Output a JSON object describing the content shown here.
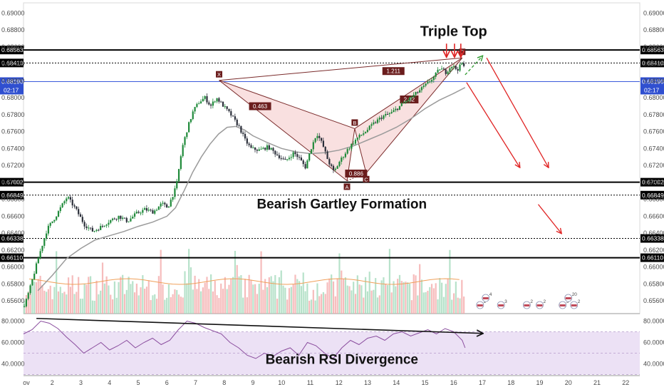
{
  "chart_data": {
    "type": "candlestick",
    "title": "",
    "x_ticks": [
      "ov",
      "2",
      "3",
      "4",
      "5",
      "6",
      "7",
      "8",
      "9",
      "10",
      "11",
      "12",
      "13",
      "14",
      "15",
      "16",
      "17",
      "18",
      "19",
      "20",
      "21",
      "22"
    ],
    "y_ticks": [
      "0.69000",
      "0.68800",
      "0.68600",
      "0.68400",
      "0.68200",
      "0.68000",
      "0.67800",
      "0.67600",
      "0.67400",
      "0.67200",
      "0.67000",
      "0.66800",
      "0.66600",
      "0.66400",
      "0.66200",
      "0.66000",
      "0.65800",
      "0.65600"
    ],
    "ylim": [
      0.6545,
      0.6912
    ],
    "rsi_ticks": [
      "80.0000",
      "60.0000",
      "40.0000"
    ],
    "rsi_ylim": [
      29,
      87
    ],
    "countdown": "02:17",
    "levels": [
      {
        "label": "0.68563",
        "value": 0.68563,
        "style": "solid"
      },
      {
        "label": "0.68410",
        "value": 0.6841,
        "style": "dotted"
      },
      {
        "label": "0.68190",
        "value": 0.6819,
        "style": "current"
      },
      {
        "label": "0.67002",
        "value": 0.67002,
        "style": "solid"
      },
      {
        "label": "0.66849",
        "value": 0.66849,
        "style": "dotted"
      },
      {
        "label": "0.66338",
        "value": 0.66338,
        "style": "dotted"
      },
      {
        "label": "0.66110",
        "value": 0.6611,
        "style": "solid"
      }
    ],
    "price_path": [
      [
        1.0,
        0.6553
      ],
      [
        1.2,
        0.6575
      ],
      [
        1.5,
        0.6612
      ],
      [
        1.8,
        0.6645
      ],
      [
        2.1,
        0.666
      ],
      [
        2.3,
        0.6672
      ],
      [
        2.5,
        0.6683
      ],
      [
        2.8,
        0.6668
      ],
      [
        3.1,
        0.665
      ],
      [
        3.4,
        0.6642
      ],
      [
        3.7,
        0.6648
      ],
      [
        4.0,
        0.6655
      ],
      [
        4.3,
        0.666
      ],
      [
        4.6,
        0.6654
      ],
      [
        4.9,
        0.6663
      ],
      [
        5.2,
        0.6668
      ],
      [
        5.5,
        0.6665
      ],
      [
        5.8,
        0.6675
      ],
      [
        6.0,
        0.667
      ],
      [
        6.3,
        0.6695
      ],
      [
        6.5,
        0.674
      ],
      [
        6.7,
        0.6765
      ],
      [
        6.9,
        0.6785
      ],
      [
        7.1,
        0.6795
      ],
      [
        7.3,
        0.68
      ],
      [
        7.5,
        0.679
      ],
      [
        7.7,
        0.68
      ],
      [
        7.9,
        0.6792
      ],
      [
        8.2,
        0.678
      ],
      [
        8.5,
        0.6765
      ],
      [
        8.7,
        0.675
      ],
      [
        8.9,
        0.674
      ],
      [
        9.2,
        0.6738
      ],
      [
        9.5,
        0.6742
      ],
      [
        9.8,
        0.6733
      ],
      [
        10.1,
        0.6725
      ],
      [
        10.4,
        0.6735
      ],
      [
        10.6,
        0.6728
      ],
      [
        10.8,
        0.6718
      ],
      [
        11.0,
        0.674
      ],
      [
        11.2,
        0.6758
      ],
      [
        11.4,
        0.6745
      ],
      [
        11.6,
        0.6725
      ],
      [
        11.8,
        0.6712
      ],
      [
        12.0,
        0.6725
      ],
      [
        12.3,
        0.674
      ],
      [
        12.6,
        0.6752
      ],
      [
        12.9,
        0.676
      ],
      [
        13.2,
        0.677
      ],
      [
        13.5,
        0.6778
      ],
      [
        13.8,
        0.6782
      ],
      [
        14.1,
        0.679
      ],
      [
        14.4,
        0.6798
      ],
      [
        14.7,
        0.6806
      ],
      [
        15.0,
        0.6815
      ],
      [
        15.3,
        0.6825
      ],
      [
        15.5,
        0.6835
      ],
      [
        15.7,
        0.683
      ],
      [
        15.9,
        0.6838
      ],
      [
        16.1,
        0.6833
      ],
      [
        16.3,
        0.6842
      ],
      [
        16.4,
        0.6822
      ]
    ],
    "ma_path": [
      [
        1.5,
        0.6572
      ],
      [
        2.0,
        0.659
      ],
      [
        2.5,
        0.661
      ],
      [
        3.0,
        0.6622
      ],
      [
        3.5,
        0.6632
      ],
      [
        4.0,
        0.6637
      ],
      [
        4.5,
        0.6642
      ],
      [
        5.0,
        0.6648
      ],
      [
        5.5,
        0.6653
      ],
      [
        6.0,
        0.666
      ],
      [
        6.3,
        0.667
      ],
      [
        6.6,
        0.669
      ],
      [
        6.9,
        0.6712
      ],
      [
        7.2,
        0.673
      ],
      [
        7.5,
        0.6745
      ],
      [
        7.8,
        0.6757
      ],
      [
        8.1,
        0.6765
      ],
      [
        8.4,
        0.6766
      ],
      [
        8.7,
        0.6762
      ],
      [
        9.0,
        0.6755
      ],
      [
        9.5,
        0.6747
      ],
      [
        10.0,
        0.674
      ],
      [
        10.5,
        0.6736
      ],
      [
        11.0,
        0.6734
      ],
      [
        11.5,
        0.6735
      ],
      [
        12.0,
        0.6738
      ],
      [
        12.5,
        0.6743
      ],
      [
        13.0,
        0.675
      ],
      [
        13.5,
        0.6757
      ],
      [
        14.0,
        0.6765
      ],
      [
        14.5,
        0.6775
      ],
      [
        15.0,
        0.6787
      ],
      [
        15.5,
        0.6797
      ],
      [
        16.0,
        0.6805
      ],
      [
        16.4,
        0.6812
      ]
    ],
    "pattern": {
      "name": "Bearish Gartley Formation",
      "points": [
        {
          "label": "X",
          "x": 7.82,
          "y": 0.68205
        },
        {
          "label": "A",
          "x": 12.28,
          "y": 0.6702
        },
        {
          "label": "B",
          "x": 12.55,
          "y": 0.67635
        },
        {
          "label": "C",
          "x": 12.95,
          "y": 0.6711
        },
        {
          "label": "D",
          "x": 16.3,
          "y": 0.6847
        }
      ],
      "ratios": [
        {
          "text": "1.211",
          "x": 13.9,
          "y": 0.6831
        },
        {
          "text": "0.463",
          "x": 9.25,
          "y": 0.67895
        },
        {
          "text": "0.886",
          "x": 12.6,
          "y": 0.671
        },
        {
          "text": "2.82",
          "x": 14.45,
          "y": 0.67975
        }
      ]
    },
    "annotations": [
      {
        "text": "Triple Top",
        "x": 16.0,
        "y": 0.6873
      },
      {
        "text": "Bearish Gartley Formation",
        "x": 12.1,
        "y": 0.6669
      },
      {
        "text": "Bearish RSI Divergence",
        "x": 12.1,
        "y": 40
      }
    ],
    "triple_top_arrows_x": [
      15.75,
      16.03,
      16.25
    ],
    "projection_arrows": [
      {
        "color": "#2e9a2e",
        "dashed": true,
        "from": [
          16.4,
          0.6827
        ],
        "to": [
          17.0,
          0.6849
        ]
      },
      {
        "color": "#e02424",
        "dashed": false,
        "from": [
          16.45,
          0.6818
        ],
        "to": [
          18.3,
          0.6718
        ]
      },
      {
        "color": "#e02424",
        "dashed": false,
        "from": [
          17.15,
          0.6847
        ],
        "to": [
          19.3,
          0.6718
        ]
      },
      {
        "color": "#e02424",
        "dashed": false,
        "from": [
          18.95,
          0.6674
        ],
        "to": [
          19.75,
          0.664
        ]
      }
    ],
    "rsi_path": [
      [
        1.0,
        68
      ],
      [
        1.3,
        72
      ],
      [
        1.6,
        80
      ],
      [
        1.9,
        78
      ],
      [
        2.2,
        73
      ],
      [
        2.5,
        65
      ],
      [
        2.8,
        58
      ],
      [
        3.1,
        50
      ],
      [
        3.4,
        55
      ],
      [
        3.7,
        60
      ],
      [
        4.0,
        53
      ],
      [
        4.3,
        57
      ],
      [
        4.6,
        62
      ],
      [
        4.9,
        55
      ],
      [
        5.2,
        60
      ],
      [
        5.5,
        64
      ],
      [
        5.8,
        58
      ],
      [
        6.1,
        62
      ],
      [
        6.4,
        72
      ],
      [
        6.7,
        80
      ],
      [
        7.0,
        78
      ],
      [
        7.3,
        74
      ],
      [
        7.6,
        71
      ],
      [
        7.9,
        68
      ],
      [
        8.2,
        60
      ],
      [
        8.5,
        55
      ],
      [
        8.8,
        48
      ],
      [
        9.1,
        45
      ],
      [
        9.4,
        50
      ],
      [
        9.7,
        47
      ],
      [
        10.0,
        52
      ],
      [
        10.3,
        55
      ],
      [
        10.6,
        48
      ],
      [
        10.9,
        60
      ],
      [
        11.2,
        57
      ],
      [
        11.5,
        50
      ],
      [
        11.8,
        45
      ],
      [
        12.1,
        55
      ],
      [
        12.4,
        62
      ],
      [
        12.7,
        58
      ],
      [
        13.0,
        64
      ],
      [
        13.3,
        66
      ],
      [
        13.6,
        62
      ],
      [
        13.9,
        68
      ],
      [
        14.2,
        70
      ],
      [
        14.5,
        66
      ],
      [
        14.8,
        69
      ],
      [
        15.1,
        72
      ],
      [
        15.4,
        68
      ],
      [
        15.7,
        73
      ],
      [
        16.0,
        70
      ],
      [
        16.3,
        62
      ],
      [
        16.4,
        55
      ]
    ],
    "rsi_divergence_line": [
      [
        1.45,
        82.5
      ],
      [
        17.0,
        68.5
      ]
    ],
    "events": [
      {
        "x": 16.92,
        "badges": [
          "2",
          "4"
        ]
      },
      {
        "x": 17.65,
        "badges": [
          "3"
        ]
      },
      {
        "x": 18.55,
        "badges": [
          "2"
        ]
      },
      {
        "x": 19.0,
        "badges": [
          "2"
        ]
      },
      {
        "x": 19.8,
        "badges": [
          "5",
          "20",
          "2"
        ]
      }
    ]
  }
}
